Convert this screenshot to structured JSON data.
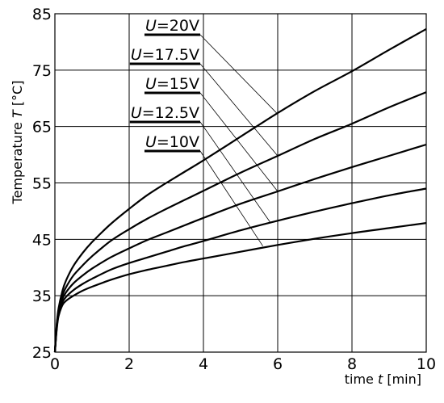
{
  "chart_data": {
    "type": "line",
    "title": "",
    "xlabel": {
      "prefix": "time ",
      "var": "t",
      "suffix": " [min]"
    },
    "ylabel": {
      "prefix": "Temperature ",
      "var": "T",
      "suffix": " [°C]"
    },
    "xlim": [
      0,
      10
    ],
    "ylim": [
      25,
      85
    ],
    "xticks": [
      0,
      2,
      4,
      6,
      8,
      10
    ],
    "yticks": [
      25,
      35,
      45,
      55,
      65,
      75,
      85
    ],
    "grid": true,
    "legend_placement": "top-left",
    "x": [
      0,
      0.05,
      0.1,
      0.2,
      0.3,
      0.5,
      0.75,
      1,
      1.5,
      2,
      2.5,
      3,
      3.5,
      4,
      5,
      6,
      7,
      8,
      9,
      10
    ],
    "series": [
      {
        "name": "U=20V",
        "legend_var": "U",
        "legend_value": "=20V",
        "values": [
          25,
          30.0,
          32.8,
          35.8,
          37.7,
          40.3,
          42.6,
          44.5,
          47.7,
          50.4,
          52.9,
          55.0,
          57.0,
          59.0,
          63.2,
          67.4,
          71.3,
          74.8,
          78.6,
          82.3
        ]
      },
      {
        "name": "U=17.5V",
        "legend_var": "U",
        "legend_value": "=17.5V",
        "values": [
          25,
          29.8,
          32.4,
          35.0,
          36.5,
          38.6,
          40.4,
          42.0,
          44.7,
          46.8,
          48.7,
          50.4,
          52.0,
          53.6,
          56.8,
          59.8,
          62.8,
          65.5,
          68.4,
          71.1
        ]
      },
      {
        "name": "U=15V",
        "legend_var": "U",
        "legend_value": "=15V",
        "values": [
          25,
          29.5,
          32.0,
          34.4,
          35.6,
          37.2,
          38.6,
          39.8,
          41.8,
          43.4,
          44.9,
          46.2,
          47.5,
          48.8,
          51.3,
          53.5,
          55.7,
          57.8,
          59.8,
          61.8
        ]
      },
      {
        "name": "U=12.5V",
        "legend_var": "U",
        "legend_value": "=12.5V",
        "values": [
          25,
          29.3,
          31.7,
          33.8,
          34.8,
          36.0,
          37.1,
          38.0,
          39.6,
          40.8,
          41.8,
          42.8,
          43.8,
          44.7,
          46.6,
          48.3,
          49.9,
          51.4,
          52.8,
          54.0
        ]
      },
      {
        "name": "U=10V",
        "legend_var": "U",
        "legend_value": "=10V",
        "values": [
          25,
          29.0,
          31.4,
          33.3,
          34.1,
          35.0,
          35.9,
          36.6,
          37.8,
          38.8,
          39.6,
          40.3,
          41.0,
          41.6,
          42.8,
          44.0,
          45.1,
          46.1,
          47.0,
          47.9
        ]
      }
    ],
    "annotations": [
      {
        "series": "U=20V",
        "to_x": 6.0,
        "to_y": 67.2
      },
      {
        "series": "U=17.5V",
        "to_x": 6.0,
        "to_y": 59.8
      },
      {
        "series": "U=15V",
        "to_x": 6.0,
        "to_y": 53.5
      },
      {
        "series": "U=12.5V",
        "to_x": 5.8,
        "to_y": 48.0
      },
      {
        "series": "U=10V",
        "to_x": 5.6,
        "to_y": 43.8
      }
    ],
    "line_color": "#000000",
    "grid_color": "#000000"
  }
}
